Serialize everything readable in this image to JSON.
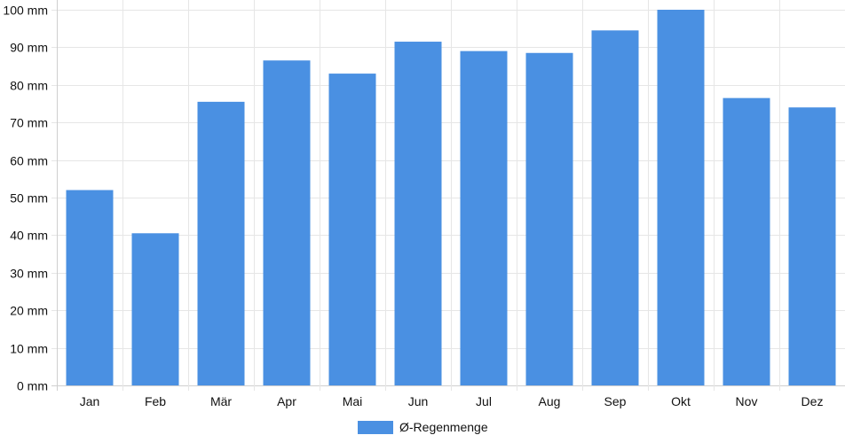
{
  "chart_data": {
    "type": "bar",
    "categories": [
      "Jan",
      "Feb",
      "Mär",
      "Apr",
      "Mai",
      "Jun",
      "Jul",
      "Aug",
      "Sep",
      "Okt",
      "Nov",
      "Dez"
    ],
    "series": [
      {
        "name": "Ø-Regenmenge",
        "color": "#4A90E2",
        "values": [
          52,
          40.5,
          75.5,
          86.5,
          83,
          91.5,
          89,
          88.5,
          94.5,
          100,
          76.5,
          74
        ]
      }
    ],
    "ylim": [
      0,
      100
    ],
    "yticks": [
      0,
      10,
      20,
      30,
      40,
      50,
      60,
      70,
      80,
      90,
      100
    ],
    "y_unit": "mm",
    "grid": true,
    "legend_position": "bottom-center"
  }
}
